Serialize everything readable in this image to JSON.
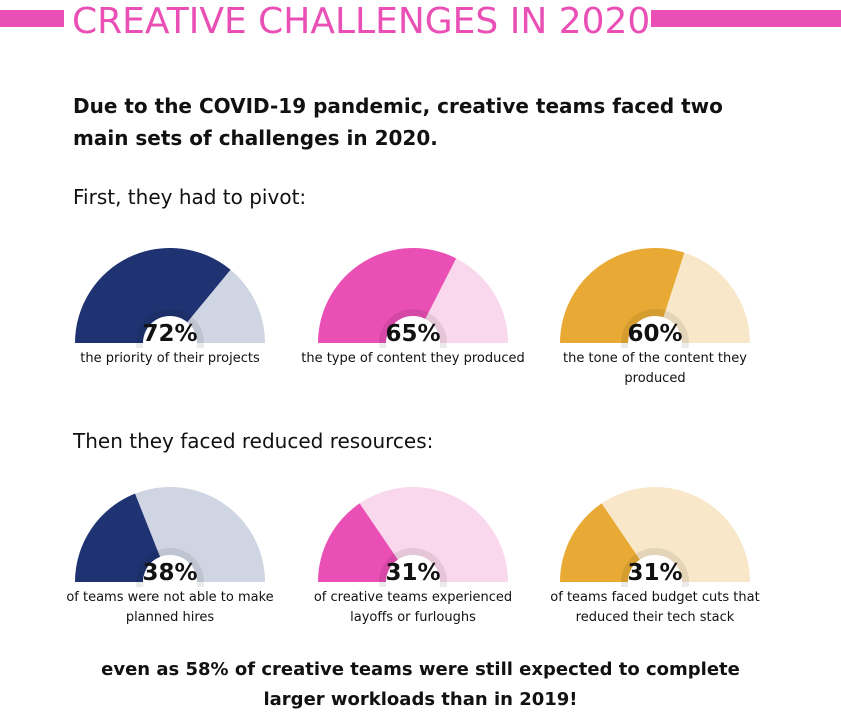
{
  "header": {
    "title": "CREATIVE CHALLENGES IN 2020",
    "accent_color": "#e94fb5"
  },
  "intro": {
    "text": "Due to the COVID-19 pandemic, creative teams faced two main sets of challenges in 2020."
  },
  "sections": [
    {
      "label": "First, they had to pivot:"
    },
    {
      "label": "Then they faced reduced resources:"
    }
  ],
  "chart_data": {
    "type": "gauge",
    "unit": "%",
    "max": 100,
    "items": [
      {
        "value": 72,
        "label": "72%",
        "caption": "the priority of their projects",
        "color": "#1f3372",
        "track": "#cfd5e2"
      },
      {
        "value": 65,
        "label": "65%",
        "caption": "the type of content they produced",
        "color": "#e94fb5",
        "track": "#f9d7ec"
      },
      {
        "value": 60,
        "label": "60%",
        "caption": "the tone of the content they produced",
        "color": "#e8aa35",
        "track": "#f8e8c9"
      },
      {
        "value": 38,
        "label": "38%",
        "caption": "of teams were not able to make planned hires",
        "color": "#1f3372",
        "track": "#cfd5e2"
      },
      {
        "value": 31,
        "label": "31%",
        "caption": "of creative teams experienced layoffs or furloughs",
        "color": "#e94fb5",
        "track": "#f9d7ec"
      },
      {
        "value": 31,
        "label": "31%",
        "caption": "of teams faced budget cuts that reduced their tech stack",
        "color": "#e8aa35",
        "track": "#f8e8c9"
      }
    ]
  },
  "footer": {
    "part1": "even as ",
    "highlight": "58%",
    "part2": " of creative teams were still expected to complete larger workloads than in 2019!"
  }
}
